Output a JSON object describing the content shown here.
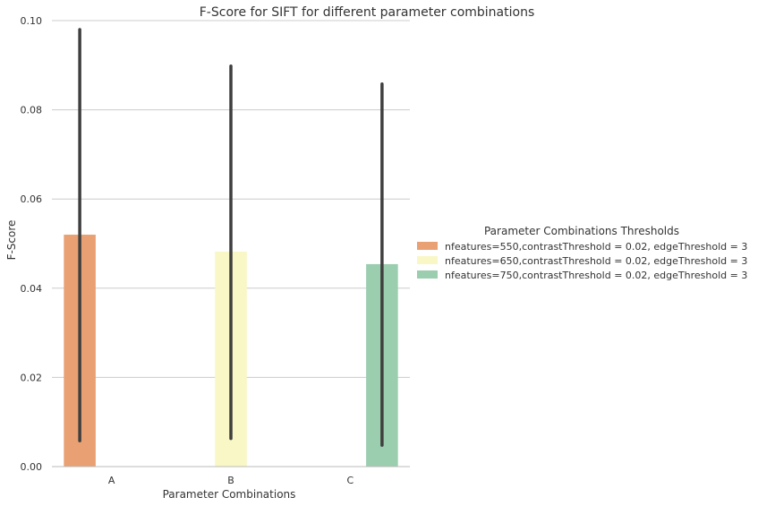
{
  "chart_data": {
    "type": "bar",
    "title": "F-Score for SIFT for different parameter combinations",
    "xlabel": "Parameter Combinations",
    "ylabel": "F-Score",
    "categories": [
      "A",
      "B",
      "C"
    ],
    "ylim": [
      0,
      0.1
    ],
    "yticks": [
      "0.00",
      "0.02",
      "0.04",
      "0.06",
      "0.08",
      "0.10"
    ],
    "grid": "horizontal",
    "legend_title": "Parameter Combinations Thresholds",
    "legend_position": "right",
    "series": [
      {
        "name": "nfeatures=550,contrastThreshold = 0.02, edgeThreshold = 3",
        "category": "A",
        "value": 0.052,
        "ci": [
          0.0058,
          0.098
        ],
        "color": "#E9A072"
      },
      {
        "name": "nfeatures=650,contrastThreshold = 0.02, edgeThreshold = 3",
        "category": "B",
        "value": 0.0482,
        "ci": [
          0.0063,
          0.0898
        ],
        "color": "#F8F7C5"
      },
      {
        "name": "nfeatures=750,contrastThreshold = 0.02, edgeThreshold = 3",
        "category": "C",
        "value": 0.0454,
        "ci": [
          0.0048,
          0.0858
        ],
        "color": "#9BCDAF"
      }
    ]
  }
}
